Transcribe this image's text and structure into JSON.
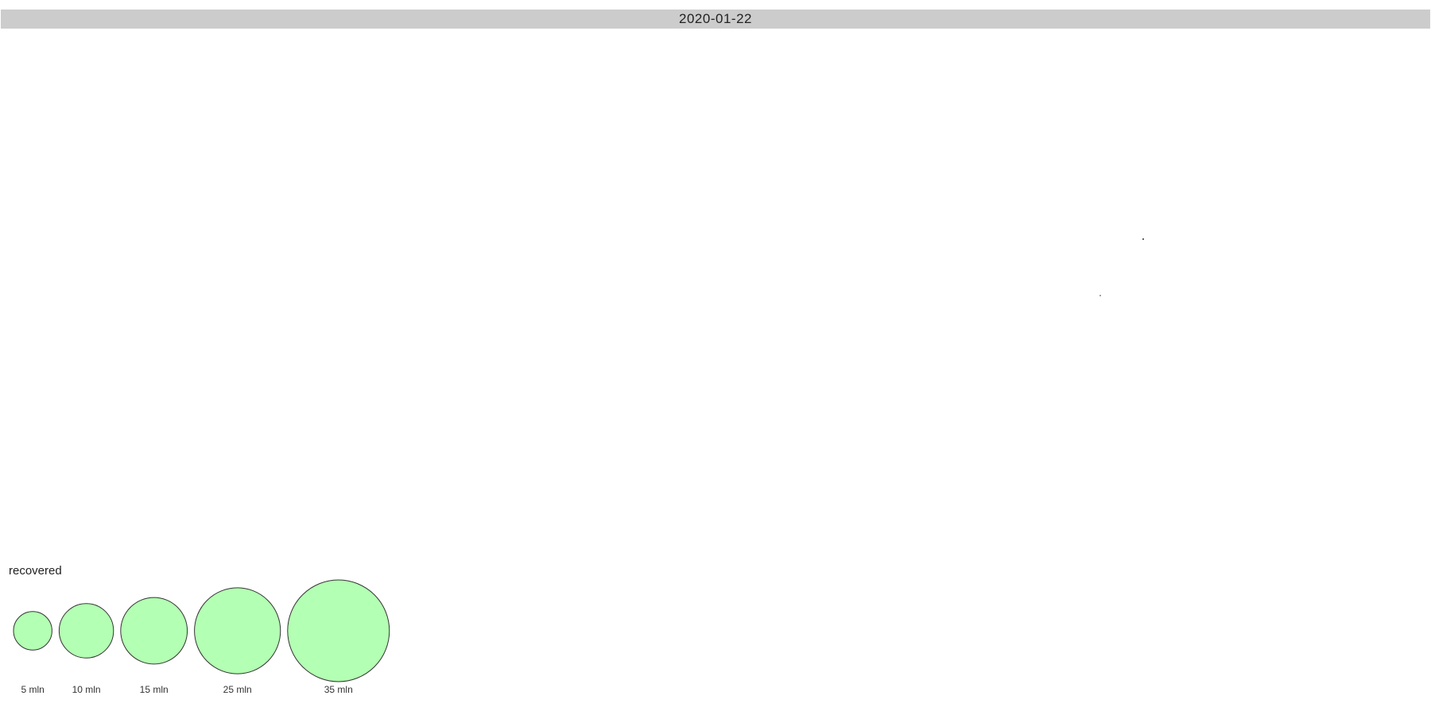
{
  "header": {
    "date": "2020-01-22"
  },
  "map": {
    "points": [
      {
        "name": "marker-dot-1"
      },
      {
        "name": "marker-dot-2"
      }
    ]
  },
  "legend": {
    "title": "recovered",
    "fill_color": "#b3ffb3",
    "stroke_color": "#333333",
    "bubbles": [
      {
        "label": "5 mln",
        "value_mln": 5
      },
      {
        "label": "10 mln",
        "value_mln": 10
      },
      {
        "label": "15 mln",
        "value_mln": 15
      },
      {
        "label": "25 mln",
        "value_mln": 25
      },
      {
        "label": "35 mln",
        "value_mln": 35
      }
    ]
  }
}
